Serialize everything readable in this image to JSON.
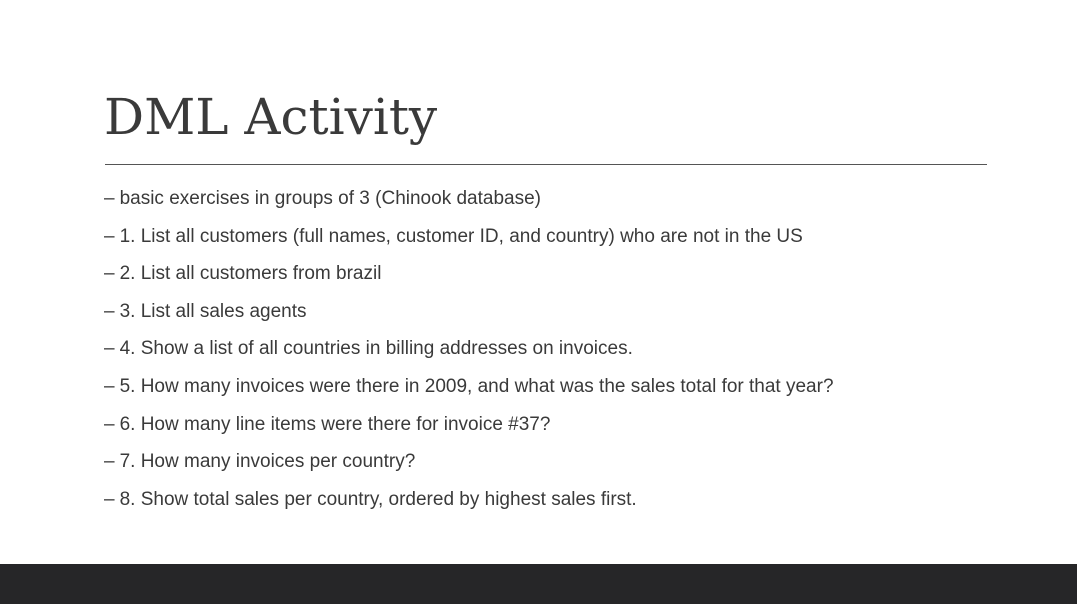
{
  "slide": {
    "title": "DML Activity",
    "bullet_marker": "–",
    "bullets": [
      "basic exercises in groups of 3 (Chinook database)",
      "1. List all customers (full names, customer ID, and country) who are not in the US",
      "2. List all customers from brazil",
      "3. List all sales agents",
      "4. Show a list of all countries in billing addresses on invoices.",
      "5. How many invoices were there in 2009, and what was the sales total for that year?",
      "6. How many line items were there for invoice #37?",
      "7. How many invoices per country?",
      "8. Show total sales per country, ordered by highest sales first."
    ]
  },
  "colors": {
    "text": "#3a3a3a",
    "rule": "#555555",
    "footer": "#262628",
    "background": "#ffffff"
  }
}
